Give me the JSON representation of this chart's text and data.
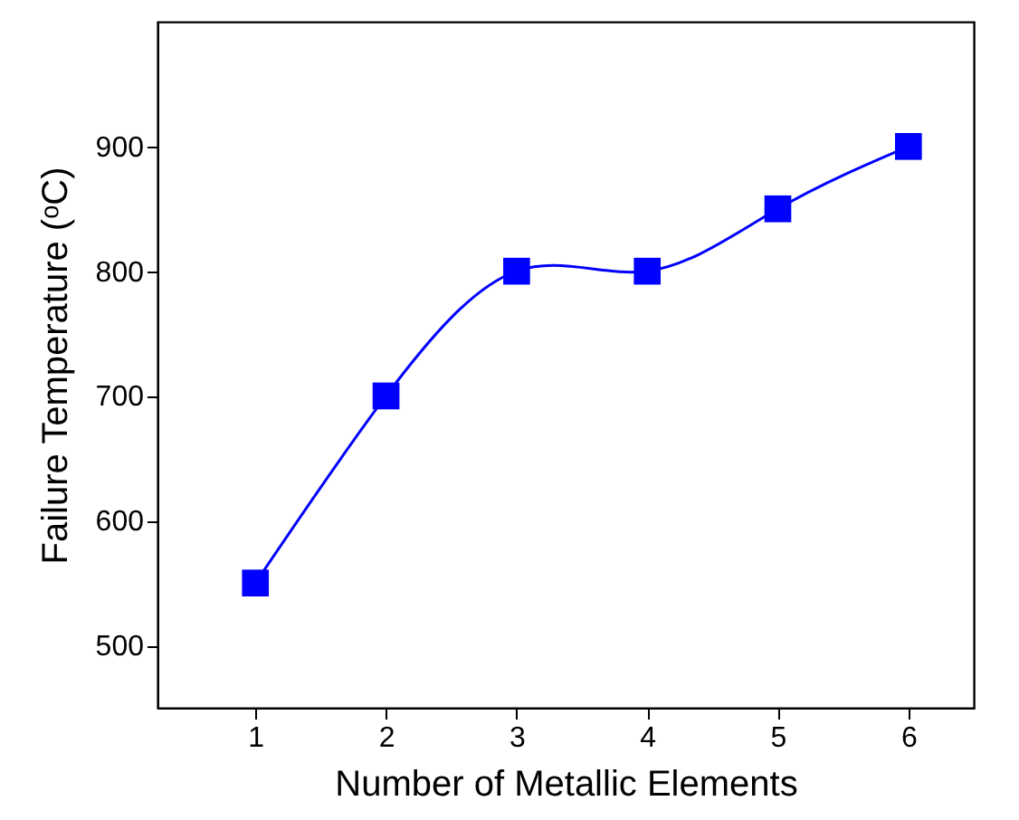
{
  "chart_data": {
    "type": "line",
    "xlabel": "Number of Metallic Elements",
    "ylabel": "Failure Temperature (ᵒC)",
    "x": [
      1,
      2,
      3,
      4,
      5,
      6
    ],
    "series": [
      {
        "color": "#0000ff",
        "values": [
          550,
          700,
          800,
          800,
          850,
          900
        ]
      }
    ],
    "xlim": [
      0.25,
      6.5
    ],
    "xticks": [
      1,
      2,
      3,
      4,
      5,
      6
    ],
    "ylim": [
      450,
      1000
    ],
    "yticks": [
      500,
      600,
      700,
      800,
      900
    ],
    "grid": false,
    "marker": "square",
    "line_style": "solid"
  }
}
